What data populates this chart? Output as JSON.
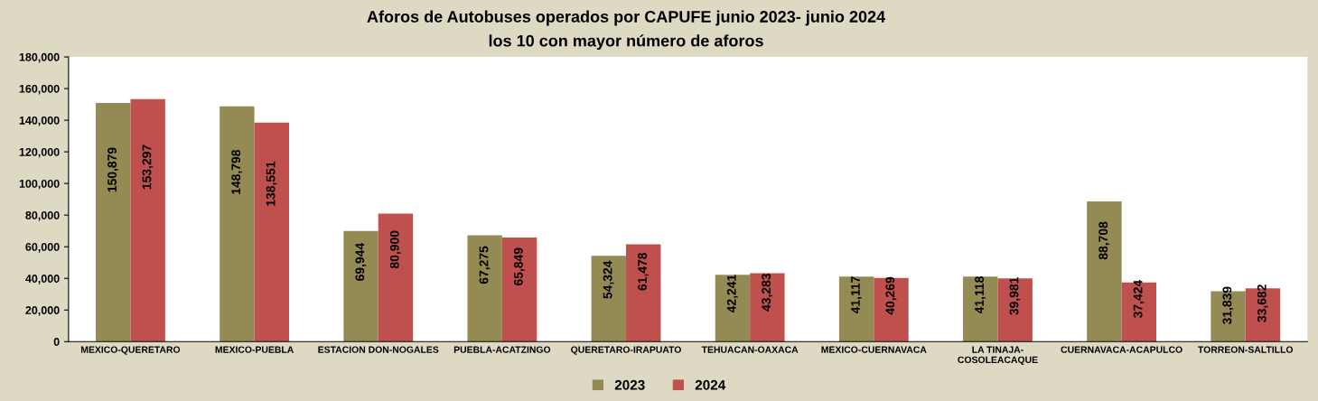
{
  "chart_data": {
    "type": "bar",
    "title": "Aforos de Autobuses operados por CAPUFE junio 2023- junio 2024",
    "subtitle": "los 10 con mayor número de aforos",
    "categories": [
      "MEXICO-QUERETARO",
      "MEXICO-PUEBLA",
      "ESTACION DON-NOGALES",
      "PUEBLA-ACATZINGO",
      "QUERETARO-IRAPUATO",
      "TEHUACAN-OAXACA",
      "MEXICO-CUERNAVACA",
      "LA TINAJA-\nCOSOLEACAQUE",
      "CUERNAVACA-ACAPULCO",
      "TORREON-SALTILLO"
    ],
    "series": [
      {
        "name": "2023",
        "color": "#948a54",
        "values": [
          150879,
          148798,
          69944,
          67275,
          54324,
          42241,
          41117,
          41118,
          88708,
          31839
        ],
        "value_labels": [
          "150,879",
          "148,798",
          "69,944",
          "67,275",
          "54,324",
          "42,241",
          "41,117",
          "41,118",
          "88,708",
          "31,839"
        ]
      },
      {
        "name": "2024",
        "color": "#c0504d",
        "values": [
          153297,
          138551,
          80900,
          65849,
          61478,
          43283,
          40269,
          39981,
          37424,
          33682
        ],
        "value_labels": [
          "153,297",
          "138,551",
          "80,900",
          "65,849",
          "61,478",
          "43,283",
          "40,269",
          "39,981",
          "37,424",
          "33,682"
        ]
      }
    ],
    "ylim": [
      0,
      180000
    ],
    "yticks": [
      {
        "value": 0,
        "label": "0"
      },
      {
        "value": 20000,
        "label": "20,000"
      },
      {
        "value": 40000,
        "label": "40,000"
      },
      {
        "value": 60000,
        "label": "60,000"
      },
      {
        "value": 80000,
        "label": "80,000"
      },
      {
        "value": 100000,
        "label": "100,000"
      },
      {
        "value": 120000,
        "label": "120,000"
      },
      {
        "value": 140000,
        "label": "140,000"
      },
      {
        "value": 160000,
        "label": "160,000"
      },
      {
        "value": 180000,
        "label": "180,000"
      }
    ],
    "grid": false,
    "legend": "bottom"
  }
}
